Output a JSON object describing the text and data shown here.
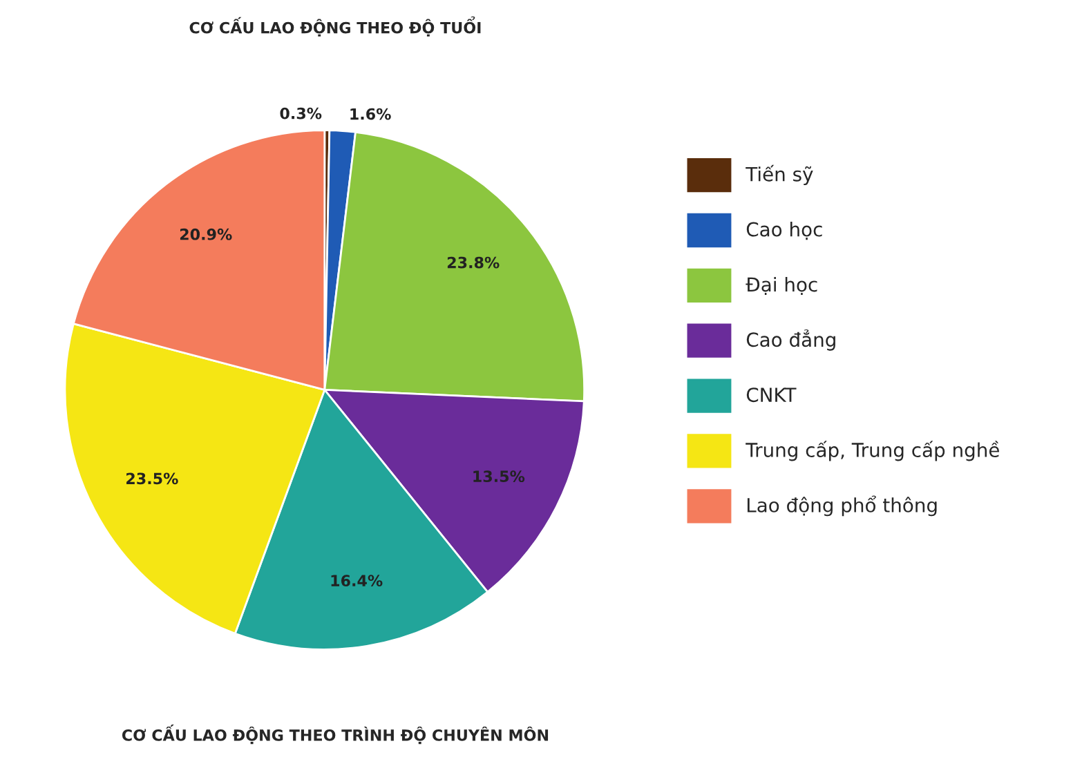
{
  "chart_data": {
    "type": "pie",
    "title": "CƠ CẤU LAO ĐỘNG THEO ĐỘ TUỔI",
    "annotations": [
      "CƠ CẤU LAO ĐỘNG THEO TRÌNH ĐỘ CHUYÊN MÔN"
    ],
    "categories": [
      "Tiến sỹ",
      "Cao học",
      "Đại học",
      "Cao đẳng",
      "CNKT",
      "Trung cấp, Trung cấp nghề",
      "Lao động phổ thông"
    ],
    "values": [
      0.3,
      1.6,
      23.8,
      13.5,
      16.4,
      23.5,
      20.9
    ],
    "value_labels": [
      "0.3%",
      "1.6%",
      "23.8%",
      "13.5%",
      "16.4%",
      "23.5%",
      "20.9%"
    ],
    "colors": [
      "#5a2d0c",
      "#1f5bb5",
      "#8cc63f",
      "#6a2c9a",
      "#22a59a",
      "#f5e614",
      "#f47c5c"
    ],
    "legend": "right"
  }
}
